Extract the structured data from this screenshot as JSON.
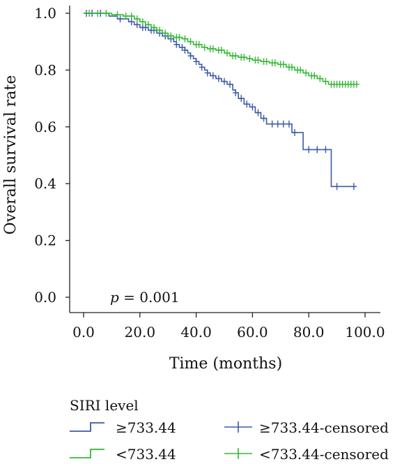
{
  "chart_data": {
    "type": "line",
    "title": "",
    "xlabel": "Time (months)",
    "ylabel": "Overall survival rate",
    "xlim": [
      0,
      100
    ],
    "ylim": [
      0,
      1
    ],
    "x_ticks": [
      "0.0",
      "20.0",
      "40.0",
      "60.0",
      "80.0",
      "100.0"
    ],
    "y_ticks": [
      "0.0",
      "0.2",
      "0.4",
      "0.6",
      "0.8",
      "1.0"
    ],
    "annotation": {
      "italic": "p",
      "rest": " = 0.001"
    },
    "legend": {
      "title": "SIRI level",
      "entries": [
        "≥733.44",
        "<733.44",
        "≥733.44-censored",
        "<733.44-censored"
      ]
    },
    "series": [
      {
        "name": "≥733.44",
        "color": "#3d5aa8",
        "steps": [
          [
            0,
            1.0
          ],
          [
            9,
            0.99
          ],
          [
            12,
            0.98
          ],
          [
            16,
            0.97
          ],
          [
            18,
            0.96
          ],
          [
            20,
            0.95
          ],
          [
            23,
            0.94
          ],
          [
            26,
            0.93
          ],
          [
            28,
            0.92
          ],
          [
            30,
            0.91
          ],
          [
            32,
            0.9
          ],
          [
            33,
            0.89
          ],
          [
            34,
            0.88
          ],
          [
            36,
            0.87
          ],
          [
            37,
            0.86
          ],
          [
            38,
            0.85
          ],
          [
            39,
            0.84
          ],
          [
            40,
            0.83
          ],
          [
            41,
            0.82
          ],
          [
            42,
            0.81
          ],
          [
            43,
            0.8
          ],
          [
            44,
            0.79
          ],
          [
            45,
            0.78
          ],
          [
            47,
            0.77
          ],
          [
            49,
            0.76
          ],
          [
            51,
            0.75
          ],
          [
            53,
            0.73
          ],
          [
            54,
            0.72
          ],
          [
            55,
            0.7
          ],
          [
            57,
            0.68
          ],
          [
            59,
            0.67
          ],
          [
            61,
            0.65
          ],
          [
            63,
            0.63
          ],
          [
            65,
            0.61
          ],
          [
            74,
            0.58
          ],
          [
            78,
            0.52
          ],
          [
            88,
            0.39
          ],
          [
            97,
            0.39
          ]
        ],
        "censored": [
          1,
          3,
          6,
          13,
          17,
          19,
          21,
          22,
          24,
          25,
          27,
          29,
          31,
          33,
          35,
          36,
          38,
          40,
          42,
          44,
          46,
          48,
          50,
          52,
          54,
          56,
          58,
          60,
          62,
          64,
          67,
          69,
          71,
          73,
          75,
          80,
          83,
          86,
          90,
          96
        ]
      },
      {
        "name": "<733.44",
        "color": "#33b833",
        "steps": [
          [
            0,
            1.0
          ],
          [
            10,
            0.995
          ],
          [
            14,
            0.99
          ],
          [
            18,
            0.98
          ],
          [
            20,
            0.97
          ],
          [
            22,
            0.96
          ],
          [
            24,
            0.95
          ],
          [
            26,
            0.94
          ],
          [
            28,
            0.93
          ],
          [
            30,
            0.92
          ],
          [
            32,
            0.915
          ],
          [
            35,
            0.91
          ],
          [
            37,
            0.9
          ],
          [
            39,
            0.89
          ],
          [
            42,
            0.88
          ],
          [
            44,
            0.875
          ],
          [
            47,
            0.87
          ],
          [
            50,
            0.86
          ],
          [
            52,
            0.85
          ],
          [
            55,
            0.845
          ],
          [
            58,
            0.84
          ],
          [
            60,
            0.835
          ],
          [
            63,
            0.83
          ],
          [
            66,
            0.825
          ],
          [
            69,
            0.82
          ],
          [
            72,
            0.81
          ],
          [
            75,
            0.8
          ],
          [
            78,
            0.79
          ],
          [
            80,
            0.78
          ],
          [
            83,
            0.77
          ],
          [
            85,
            0.76
          ],
          [
            87,
            0.75
          ],
          [
            97,
            0.75
          ]
        ],
        "censored": [
          2,
          5,
          8,
          12,
          15,
          17,
          19,
          21,
          23,
          25,
          27,
          29,
          31,
          33,
          34,
          36,
          38,
          40,
          41,
          43,
          45,
          46,
          48,
          49,
          51,
          53,
          54,
          56,
          57,
          59,
          61,
          62,
          64,
          65,
          67,
          68,
          70,
          71,
          73,
          74,
          76,
          77,
          79,
          81,
          82,
          84,
          86,
          88,
          89,
          90,
          91,
          92,
          93,
          94,
          95,
          96,
          97
        ]
      }
    ]
  }
}
